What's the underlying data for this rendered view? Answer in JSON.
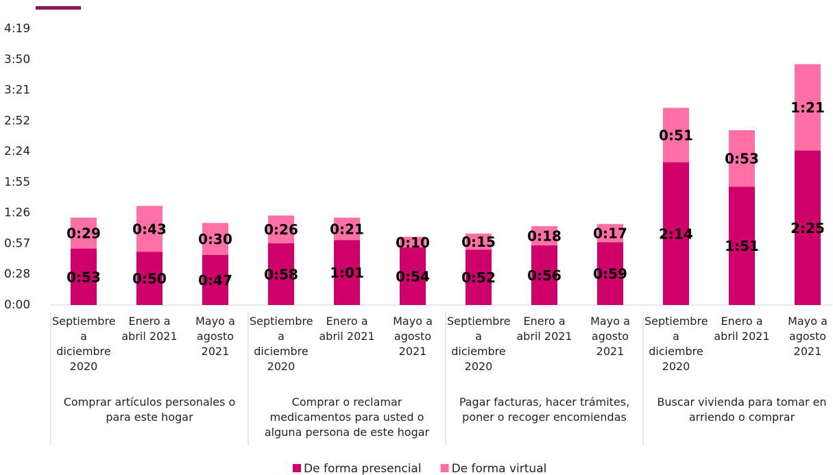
{
  "chart_data": {
    "type": "stacked_bar",
    "categories": [
      "Septiembre a diciembre 2020",
      "Enero a abril 2021",
      "Mayo a agosto 2021",
      "Septiembre a diciembre 2020",
      "Enero a abril 2021",
      "Mayo a agosto 2021",
      "Septiembre a diciembre 2020",
      "Enero a abril 2021",
      "Mayo a agosto 2021",
      "Septiembre a diciembre 2020",
      "Enero a abril 2021",
      "Mayo a agosto 2021"
    ],
    "category_groups": [
      "Comprar artículos personales o para este hogar",
      "Comprar o reclamar medicamentos para usted o alguna persona de este hogar",
      "Pagar facturas, hacer trámites, poner o recoger encomiendas",
      "Buscar vivienda para tomar en arriendo o comprar"
    ],
    "series": [
      {
        "name": "De forma presencial",
        "color": "#d0006b",
        "values": [
          53,
          50,
          47,
          58,
          61,
          54,
          52,
          56,
          59,
          134,
          111,
          145
        ],
        "value_labels": [
          "0:53",
          "0:50",
          "0:47",
          "0:58",
          "1:01",
          "0:54",
          "0:52",
          "0:56",
          "0:59",
          "2:14",
          "1:51",
          "2:25"
        ]
      },
      {
        "name": "De forma virtual",
        "color": "#ff70a6",
        "values": [
          29,
          43,
          30,
          26,
          21,
          10,
          15,
          18,
          17,
          51,
          53,
          81
        ],
        "value_labels": [
          "0:29",
          "0:43",
          "0:30",
          "0:26",
          "0:21",
          "0:10",
          "0:15",
          "0:18",
          "0:17",
          "0:51",
          "0:53",
          "1:21"
        ]
      }
    ],
    "ylim": [
      0,
      259.2
    ],
    "yticks": [
      {
        "value": 0,
        "label": "0:00"
      },
      {
        "value": 28.8,
        "label": "0:28"
      },
      {
        "value": 57.6,
        "label": "0:57"
      },
      {
        "value": 86.4,
        "label": "1:26"
      },
      {
        "value": 115.2,
        "label": "1:55"
      },
      {
        "value": 144,
        "label": "2:24"
      },
      {
        "value": 172.8,
        "label": "2:52"
      },
      {
        "value": 201.6,
        "label": "3:21"
      },
      {
        "value": 230.4,
        "label": "3:50"
      },
      {
        "value": 259.2,
        "label": "4:19"
      }
    ],
    "legend": "bottom"
  }
}
